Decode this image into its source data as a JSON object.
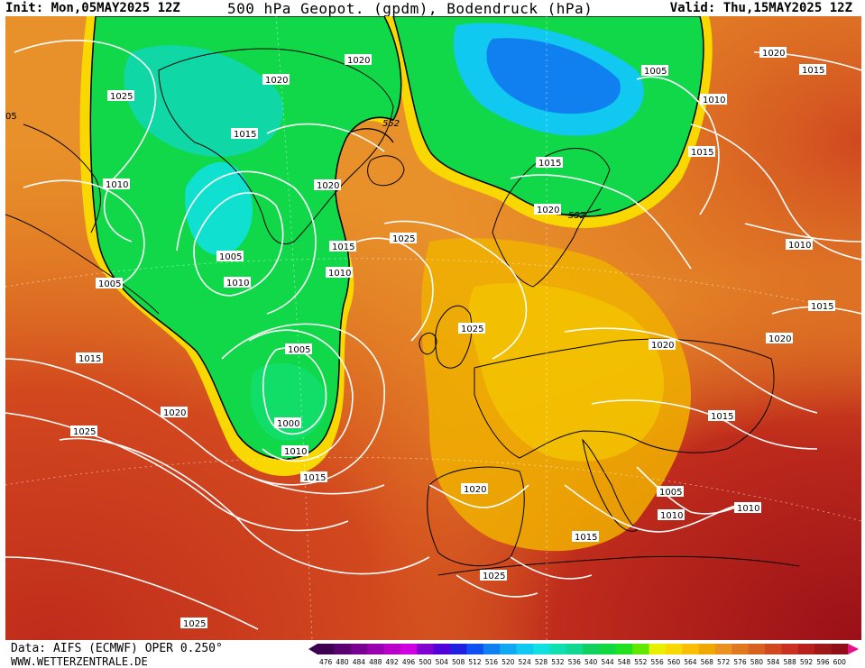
{
  "header": {
    "init": "Init: Mon,05MAY2025 12Z",
    "title": "500 hPa Geopot. (gpdm), Bodendruck (hPa)",
    "valid": "Valid: Thu,15MAY2025 12Z"
  },
  "footer": {
    "data_source": "Data: AIFS (ECMWF) OPER 0.250°",
    "website": "WWW.WETTERZENTRALE.DE"
  },
  "colorscale": {
    "labels": [
      "476",
      "480",
      "484",
      "488",
      "492",
      "496",
      "500",
      "504",
      "508",
      "512",
      "516",
      "520",
      "524",
      "528",
      "532",
      "536",
      "540",
      "544",
      "548",
      "552",
      "556",
      "560",
      "564",
      "568",
      "572",
      "576",
      "580",
      "584",
      "588",
      "592",
      "596",
      "600"
    ],
    "colors": [
      "#3d0050",
      "#5a0070",
      "#7a0090",
      "#9a00b0",
      "#b800c8",
      "#d000e0",
      "#8000d0",
      "#5000d8",
      "#2020e0",
      "#1050f0",
      "#1080f0",
      "#10a8f0",
      "#10c8f0",
      "#10e0e0",
      "#10e0b0",
      "#10d890",
      "#10d060",
      "#10d840",
      "#20e020",
      "#60e800",
      "#e8f000",
      "#f8d800",
      "#f8c000",
      "#f0a800",
      "#e89020",
      "#e07820",
      "#d86020",
      "#d04820",
      "#c83020",
      "#b82020",
      "#a01818",
      "#900e18"
    ]
  },
  "isobars": [
    {
      "label": "1025",
      "kind": "pressure"
    },
    {
      "label": "1020",
      "kind": "pressure"
    },
    {
      "label": "1020",
      "kind": "pressure"
    },
    {
      "label": "1015",
      "kind": "pressure"
    },
    {
      "label": "1010",
      "kind": "pressure"
    },
    {
      "label": "1005",
      "kind": "pressure"
    },
    {
      "label": "1010",
      "kind": "pressure"
    },
    {
      "label": "1005",
      "kind": "pressure"
    },
    {
      "label": "1015",
      "kind": "pressure"
    },
    {
      "label": "1020",
      "kind": "pressure"
    },
    {
      "label": "1025",
      "kind": "pressure"
    },
    {
      "label": "1005",
      "kind": "pressure"
    },
    {
      "label": "1000",
      "kind": "pressure"
    },
    {
      "label": "1010",
      "kind": "pressure"
    },
    {
      "label": "1015",
      "kind": "pressure"
    },
    {
      "label": "1010",
      "kind": "pressure"
    },
    {
      "label": "1015",
      "kind": "pressure"
    },
    {
      "label": "1020",
      "kind": "pressure"
    },
    {
      "label": "1025",
      "kind": "pressure"
    },
    {
      "label": "1025",
      "kind": "pressure"
    },
    {
      "label": "1015",
      "kind": "pressure"
    },
    {
      "label": "1020",
      "kind": "pressure"
    },
    {
      "label": "1005",
      "kind": "pressure"
    },
    {
      "label": "1010",
      "kind": "pressure"
    },
    {
      "label": "1015",
      "kind": "pressure"
    },
    {
      "label": "1020",
      "kind": "pressure"
    },
    {
      "label": "1015",
      "kind": "pressure"
    },
    {
      "label": "1010",
      "kind": "pressure"
    },
    {
      "label": "1015",
      "kind": "pressure"
    },
    {
      "label": "1020",
      "kind": "pressure"
    },
    {
      "label": "1020",
      "kind": "pressure"
    },
    {
      "label": "1015",
      "kind": "pressure"
    },
    {
      "label": "1010",
      "kind": "pressure"
    },
    {
      "label": "1005",
      "kind": "pressure"
    },
    {
      "label": "1010",
      "kind": "pressure"
    },
    {
      "label": "1020",
      "kind": "pressure"
    },
    {
      "label": "1015",
      "kind": "pressure"
    },
    {
      "label": "1025",
      "kind": "pressure"
    },
    {
      "label": "1025",
      "kind": "pressure"
    },
    {
      "label": "552",
      "kind": "geopotential"
    },
    {
      "label": "552",
      "kind": "geopotential"
    },
    {
      "label": "05",
      "kind": "pressure"
    }
  ]
}
